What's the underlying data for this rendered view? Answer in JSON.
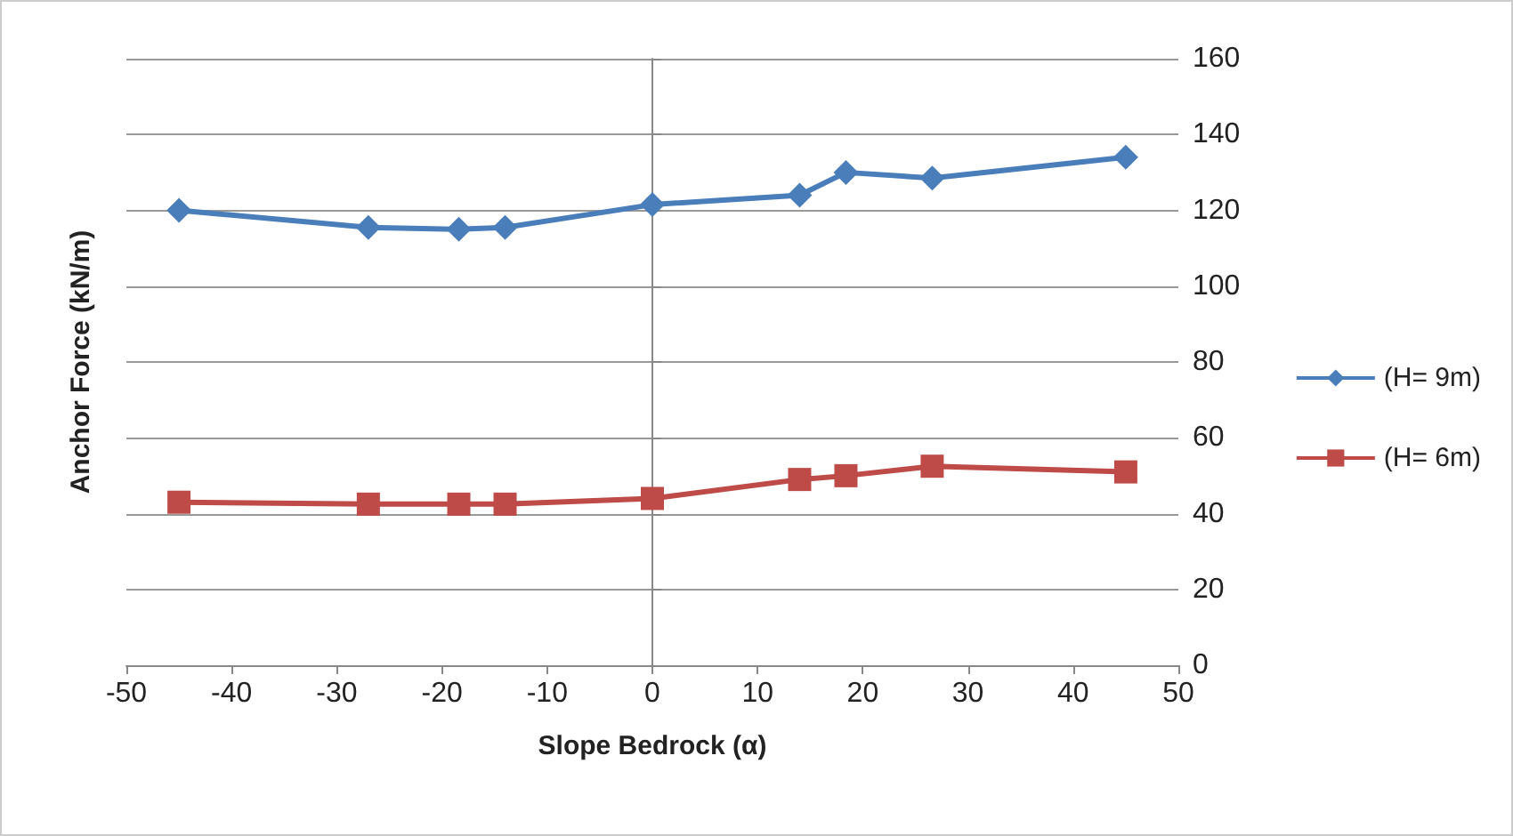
{
  "chart_data": {
    "type": "line",
    "xlabel": "Slope Bedrock (α)",
    "ylabel": "Anchor Force (kN/m)",
    "x": [
      -45,
      -27,
      -18.4,
      -14,
      0,
      14,
      18.4,
      26.6,
      45
    ],
    "series": [
      {
        "name": "(H= 9m)",
        "color": "#4a7ebb",
        "marker": "diamond",
        "values": [
          120,
          115.5,
          115,
          115.5,
          121.5,
          124,
          130,
          128.5,
          134
        ]
      },
      {
        "name": "(H= 6m)",
        "color": "#be4b48",
        "marker": "square",
        "values": [
          43,
          42.5,
          42.5,
          42.5,
          44,
          49,
          50,
          52.5,
          51
        ]
      }
    ],
    "xlim": [
      -50,
      50
    ],
    "xticks": [
      -50,
      -40,
      -30,
      -20,
      -10,
      0,
      10,
      20,
      30,
      40,
      50
    ],
    "ylim": [
      0,
      160
    ],
    "yticks": [
      0,
      20,
      40,
      60,
      80,
      100,
      120,
      140,
      160
    ],
    "grid": "y",
    "legend": "right"
  }
}
